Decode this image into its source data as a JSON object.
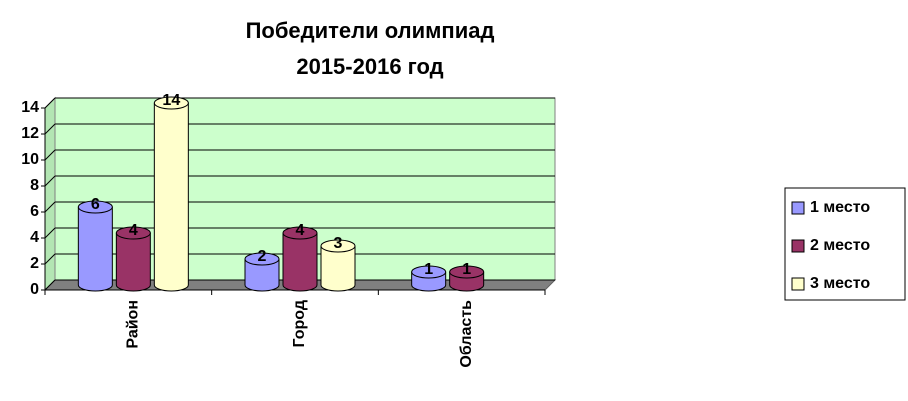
{
  "chart_data": {
    "type": "bar",
    "title": [
      "Победители олимпиад",
      "2015-2016 год"
    ],
    "categories": [
      "Район",
      "Город",
      "Область"
    ],
    "series": [
      {
        "name": "1 место",
        "color": "#9999ff",
        "values": [
          6,
          2,
          1
        ]
      },
      {
        "name": "2 место",
        "color": "#993366",
        "values": [
          4,
          4,
          1
        ]
      },
      {
        "name": "3 место",
        "color": "#ffffcc",
        "values": [
          14,
          3,
          null
        ]
      }
    ],
    "ylim": [
      0,
      14
    ],
    "yticks": [
      0,
      2,
      4,
      6,
      8,
      10,
      12,
      14
    ],
    "grid": true,
    "legend": "right"
  }
}
